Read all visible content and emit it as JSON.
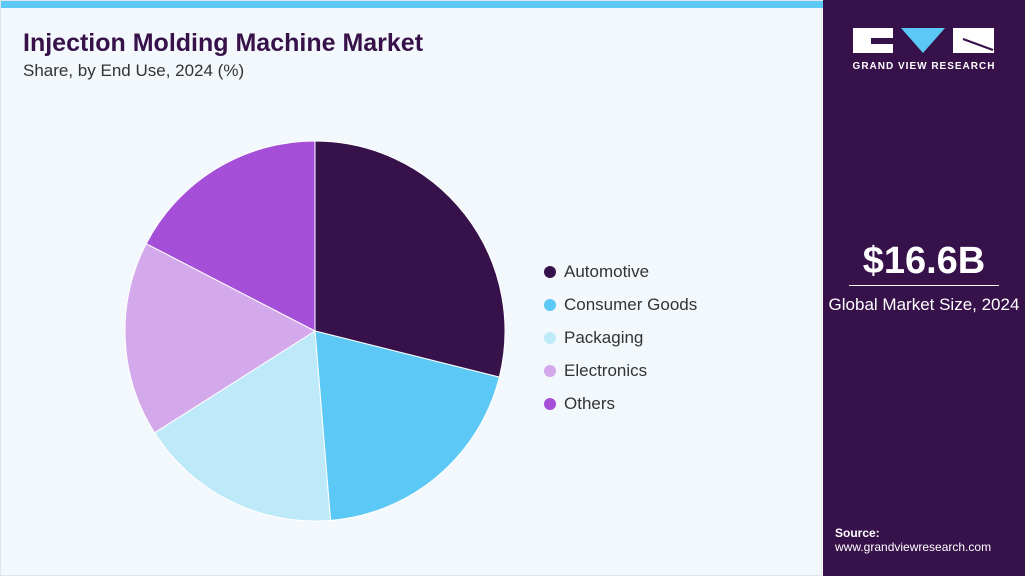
{
  "header": {
    "title": "Injection Molding Machine Market",
    "subtitle": "Share, by End Use, 2024 (%)"
  },
  "chart_data": {
    "type": "pie",
    "title": "Injection Molding Machine Market",
    "subtitle": "Share, by End Use, 2024 (%)",
    "categories": [
      "Automotive",
      "Consumer Goods",
      "Packaging",
      "Electronics",
      "Others"
    ],
    "values": [
      28.9,
      19.8,
      17.3,
      16.6,
      17.4
    ],
    "colors": [
      "#37114a",
      "#5bc8f5",
      "#bde9f9",
      "#d4a9ec",
      "#a54fd9"
    ],
    "legend_position": "right"
  },
  "sidebar": {
    "logo_text": "GRAND VIEW RESEARCH",
    "market_size": "$16.6B",
    "market_label": "Global Market Size, 2024",
    "source_label": "Source:",
    "source_url": "www.grandviewresearch.com"
  },
  "colors": {
    "brand": "#37114a",
    "accent": "#5bc8f5"
  }
}
